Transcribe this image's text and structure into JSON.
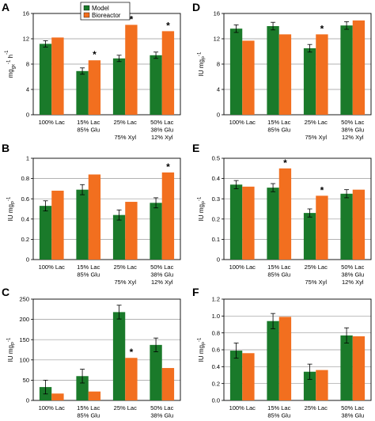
{
  "colors": {
    "model": "#1a7a2a",
    "bioreactor": "#f26f1f",
    "grid": "#999999",
    "error_bar": "#000000"
  },
  "legend": {
    "placement": "top-left",
    "entries": [
      "Model",
      "Bioreactor"
    ]
  },
  "chart_data": [
    {
      "panel": "A",
      "type": "bar",
      "ylabel": "mg",
      "ylabel_sub": "gx",
      "ylabel_sup": "h",
      "ylabel_exp": "-1",
      "ylim": [
        0,
        16
      ],
      "yticks": [
        "0",
        "4",
        "8",
        "12",
        "16"
      ],
      "grid": true,
      "legend": true,
      "categories": [
        [
          "100% Lac"
        ],
        [
          "15% Lac",
          "85% Glu"
        ],
        [
          "25% Lac",
          "",
          "75% Xyl"
        ],
        [
          "50% Lac",
          "38% Glu",
          "12% Xyl"
        ]
      ],
      "series": [
        {
          "name": "Model",
          "values": [
            11.2,
            6.9,
            8.9,
            9.4
          ],
          "errors": [
            0.5,
            0.5,
            0.5,
            0.5
          ]
        },
        {
          "name": "Bioreactor",
          "values": [
            12.2,
            8.6,
            14.2,
            13.2
          ]
        }
      ],
      "stars": [
        false,
        true,
        true,
        true
      ]
    },
    {
      "panel": "D",
      "type": "bar",
      "ylabel": "IU mg",
      "ylabel_sub": "P",
      "ylabel_exp": "-1",
      "ylim": [
        0,
        16
      ],
      "yticks": [
        "0",
        "4",
        "8",
        "12",
        "16"
      ],
      "grid": true,
      "legend": false,
      "categories": [
        [
          "100% Lac"
        ],
        [
          "15% Lac",
          "85% Glu"
        ],
        [
          "25% Lac",
          "",
          "75% Xyl"
        ],
        [
          "50% Lac",
          "38% Glu",
          "12% Xyl"
        ]
      ],
      "series": [
        {
          "name": "Model",
          "values": [
            13.6,
            14.0,
            10.5,
            14.1
          ],
          "errors": [
            0.6,
            0.6,
            0.6,
            0.6
          ]
        },
        {
          "name": "Bioreactor",
          "values": [
            11.7,
            12.7,
            12.7,
            14.9
          ]
        }
      ],
      "stars": [
        false,
        false,
        true,
        false
      ]
    },
    {
      "panel": "B",
      "type": "bar",
      "ylabel": "IU mg",
      "ylabel_sub": "P",
      "ylabel_exp": "-1",
      "ylim": [
        0,
        1.0
      ],
      "yticks": [
        "0",
        "0.2",
        "0.4",
        "0.6",
        "0.8",
        "1"
      ],
      "grid": true,
      "legend": false,
      "categories": [
        [
          "100% Lac"
        ],
        [
          "15% Lac",
          "85% Glu"
        ],
        [
          "25% Lac",
          "",
          "75% Xyl"
        ],
        [
          "50% Lac",
          "38% Glu",
          "12% Xyl"
        ]
      ],
      "series": [
        {
          "name": "Model",
          "values": [
            0.53,
            0.69,
            0.44,
            0.56
          ],
          "errors": [
            0.05,
            0.05,
            0.05,
            0.05
          ]
        },
        {
          "name": "Bioreactor",
          "values": [
            0.68,
            0.84,
            0.57,
            0.86
          ]
        }
      ],
      "stars": [
        false,
        false,
        false,
        true
      ]
    },
    {
      "panel": "E",
      "type": "bar",
      "ylabel": "IU mg",
      "ylabel_sub": "P",
      "ylabel_exp": "-1",
      "ylim": [
        0,
        0.5
      ],
      "yticks": [
        "0",
        "0.1",
        "0.2",
        "0.3",
        "0.4",
        "0.5"
      ],
      "grid": true,
      "legend": false,
      "categories": [
        [
          "100% Lac"
        ],
        [
          "15% Lac",
          "85% Glu"
        ],
        [
          "25% Lac",
          "",
          "75% Xyl"
        ],
        [
          "50% Lac",
          "38% Glu",
          "12% Xyl"
        ]
      ],
      "series": [
        {
          "name": "Model",
          "values": [
            0.37,
            0.355,
            0.23,
            0.325
          ],
          "errors": [
            0.02,
            0.02,
            0.02,
            0.02
          ]
        },
        {
          "name": "Bioreactor",
          "values": [
            0.36,
            0.45,
            0.315,
            0.345
          ]
        }
      ],
      "stars": [
        false,
        true,
        true,
        false
      ]
    },
    {
      "panel": "C",
      "type": "bar",
      "ylabel": "IU mg",
      "ylabel_sub": "P",
      "ylabel_exp": "-1",
      "ylim": [
        0,
        250
      ],
      "yticks": [
        "0",
        "50",
        "100",
        "150",
        "200",
        "250"
      ],
      "grid": true,
      "legend": false,
      "categories": [
        [
          "100% Lac"
        ],
        [
          "15% Lac",
          "85% Glu"
        ],
        [
          "25% Lac"
        ],
        [
          "50% Lac",
          "38% Glu"
        ]
      ],
      "series": [
        {
          "name": "Model",
          "values": [
            33,
            60,
            218,
            137
          ],
          "errors": [
            17,
            17,
            17,
            17
          ]
        },
        {
          "name": "Bioreactor",
          "values": [
            17,
            22,
            105,
            80
          ]
        }
      ],
      "stars": [
        false,
        false,
        true,
        false
      ]
    },
    {
      "panel": "F",
      "type": "bar",
      "ylabel": "IU mg",
      "ylabel_sub": "P",
      "ylabel_exp": "-1",
      "ylim": [
        0,
        1.2
      ],
      "yticks": [
        "0.0",
        "0.2",
        "0.4",
        "0.6",
        "0.8",
        "1.0",
        "1.2"
      ],
      "grid": true,
      "legend": false,
      "categories": [
        [
          "100% Lac"
        ],
        [
          "15% Lac",
          "85% Glu"
        ],
        [
          "25% Lac"
        ],
        [
          "50% Lac",
          "38% Glu"
        ]
      ],
      "series": [
        {
          "name": "Model",
          "values": [
            0.59,
            0.94,
            0.34,
            0.77
          ],
          "errors": [
            0.09,
            0.09,
            0.09,
            0.09
          ]
        },
        {
          "name": "Bioreactor",
          "values": [
            0.56,
            0.99,
            0.36,
            0.76
          ]
        }
      ],
      "stars": [
        false,
        false,
        false,
        false
      ]
    }
  ]
}
